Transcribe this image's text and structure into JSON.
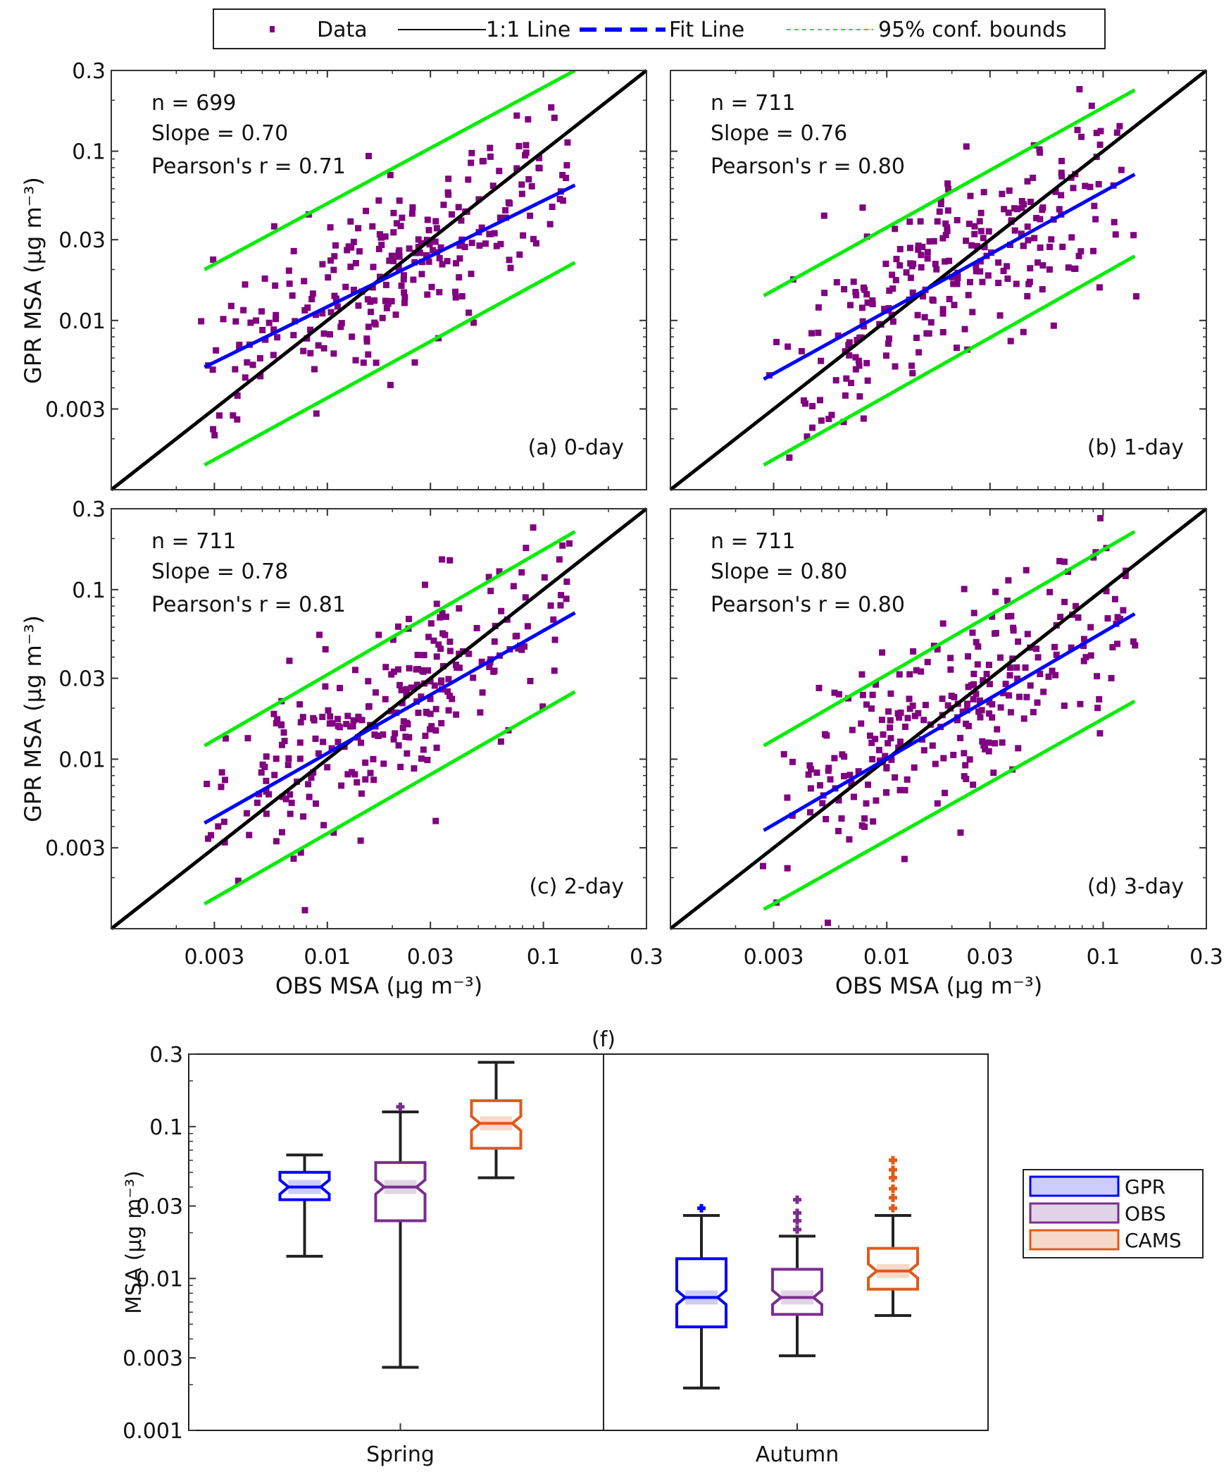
{
  "legend_top": {
    "entries": [
      {
        "label": "Data",
        "kind": "marker",
        "color": "#800080"
      },
      {
        "label": "1:1 Line",
        "kind": "solid",
        "color": "#000000"
      },
      {
        "label": "Fit Line",
        "kind": "dashed",
        "color": "#0000ff"
      },
      {
        "label": "95% conf. bounds",
        "kind": "dotted",
        "color": "#00ee00"
      }
    ]
  },
  "chart_data": [
    {
      "type": "scatter",
      "panel": "(a) 0-day",
      "xlabel": "",
      "ylabel": "GPR MSA (μg m⁻³)",
      "xscale": "log",
      "yscale": "log",
      "xlim": [
        0.001,
        0.3
      ],
      "ylim": [
        0.001,
        0.3
      ],
      "yticks": [
        "0.003",
        "0.01",
        "0.03",
        "0.1",
        "0.3"
      ],
      "xticks": [],
      "stats": [
        "n = 699",
        "Slope = 0.70",
        "Pearson's r = 0.71"
      ],
      "fit": {
        "x": [
          0.0027,
          0.14
        ],
        "y": [
          0.0053,
          0.063
        ]
      },
      "upper_bound": {
        "x": [
          0.0027,
          0.14
        ],
        "y": [
          0.02,
          0.3
        ]
      },
      "lower_bound": {
        "x": [
          0.0027,
          0.14
        ],
        "y": [
          0.0014,
          0.022
        ]
      },
      "cloud": {
        "center_x": 0.02,
        "center_y": 0.02,
        "spread": 0.55,
        "n": 260,
        "seed": 11
      }
    },
    {
      "type": "scatter",
      "panel": "(b) 1-day",
      "xlabel": "",
      "ylabel": "",
      "xscale": "log",
      "yscale": "log",
      "xlim": [
        0.001,
        0.3
      ],
      "ylim": [
        0.001,
        0.3
      ],
      "yticks": [],
      "xticks": [],
      "stats": [
        "n = 711",
        "Slope = 0.76",
        "Pearson's r = 0.80"
      ],
      "fit": {
        "x": [
          0.0027,
          0.14
        ],
        "y": [
          0.0045,
          0.073
        ]
      },
      "upper_bound": {
        "x": [
          0.0027,
          0.14
        ],
        "y": [
          0.014,
          0.23
        ]
      },
      "lower_bound": {
        "x": [
          0.0027,
          0.14
        ],
        "y": [
          0.0014,
          0.024
        ]
      },
      "cloud": {
        "center_x": 0.02,
        "center_y": 0.02,
        "spread": 0.5,
        "n": 260,
        "seed": 23
      }
    },
    {
      "type": "scatter",
      "panel": "(c) 2-day",
      "xlabel": "OBS MSA (μg m⁻³)",
      "ylabel": "GPR MSA (μg m⁻³)",
      "xscale": "log",
      "yscale": "log",
      "xlim": [
        0.001,
        0.3
      ],
      "ylim": [
        0.001,
        0.3
      ],
      "yticks": [
        "0.003",
        "0.01",
        "0.03",
        "0.1",
        "0.3"
      ],
      "xticks": [
        "0.003",
        "0.01",
        "0.03",
        "0.1",
        "0.3"
      ],
      "stats": [
        "n = 711",
        "Slope = 0.78",
        "Pearson's r = 0.81"
      ],
      "fit": {
        "x": [
          0.0027,
          0.14
        ],
        "y": [
          0.0042,
          0.073
        ]
      },
      "upper_bound": {
        "x": [
          0.0027,
          0.14
        ],
        "y": [
          0.012,
          0.22
        ]
      },
      "lower_bound": {
        "x": [
          0.0027,
          0.14
        ],
        "y": [
          0.0014,
          0.025
        ]
      },
      "cloud": {
        "center_x": 0.02,
        "center_y": 0.02,
        "spread": 0.5,
        "n": 260,
        "seed": 37
      }
    },
    {
      "type": "scatter",
      "panel": "(d) 3-day",
      "xlabel": "OBS MSA (μg m⁻³)",
      "ylabel": "",
      "xscale": "log",
      "yscale": "log",
      "xlim": [
        0.001,
        0.3
      ],
      "ylim": [
        0.001,
        0.3
      ],
      "yticks": [],
      "xticks": [
        "0.003",
        "0.01",
        "0.03",
        "0.1",
        "0.3"
      ],
      "stats": [
        "n = 711",
        "Slope = 0.80",
        "Pearson's r = 0.80"
      ],
      "fit": {
        "x": [
          0.0027,
          0.14
        ],
        "y": [
          0.0038,
          0.072
        ]
      },
      "upper_bound": {
        "x": [
          0.0027,
          0.14
        ],
        "y": [
          0.012,
          0.22
        ]
      },
      "lower_bound": {
        "x": [
          0.0027,
          0.14
        ],
        "y": [
          0.0013,
          0.022
        ]
      },
      "cloud": {
        "center_x": 0.02,
        "center_y": 0.02,
        "spread": 0.5,
        "n": 260,
        "seed": 51
      }
    },
    {
      "type": "box",
      "panel": "(f)",
      "title": "(f)",
      "ylabel": "MSA (μg m⁻³)",
      "yscale": "log",
      "ylim": [
        0.001,
        0.3
      ],
      "yticks": [
        "0.001",
        "0.003",
        "0.01",
        "0.03",
        "0.1",
        "0.3"
      ],
      "categories": [
        "Spring",
        "Autumn"
      ],
      "series": [
        {
          "name": "GPR",
          "color": "#0000ff",
          "fill": "#ccccff",
          "boxes": [
            {
              "whisker_low": 0.014,
              "q1": 0.033,
              "median": 0.04,
              "q3": 0.05,
              "whisker_high": 0.065,
              "outliers": []
            },
            {
              "whisker_low": 0.0019,
              "q1": 0.0048,
              "median": 0.0075,
              "q3": 0.0135,
              "whisker_high": 0.026,
              "outliers": [
                0.029
              ]
            }
          ]
        },
        {
          "name": "OBS",
          "color": "#7b2d8e",
          "fill": "#e1d4e6",
          "boxes": [
            {
              "whisker_low": 0.0026,
              "q1": 0.024,
              "median": 0.04,
              "q3": 0.058,
              "whisker_high": 0.125,
              "outliers": [
                0.135
              ]
            },
            {
              "whisker_low": 0.0031,
              "q1": 0.0058,
              "median": 0.0075,
              "q3": 0.0115,
              "whisker_high": 0.019,
              "outliers": [
                0.021,
                0.024,
                0.027,
                0.033
              ]
            }
          ]
        },
        {
          "name": "CAMS",
          "color": "#e05a1a",
          "fill": "#f6d9cb",
          "boxes": [
            {
              "whisker_low": 0.046,
              "q1": 0.072,
              "median": 0.105,
              "q3": 0.148,
              "whisker_high": 0.265,
              "outliers": []
            },
            {
              "whisker_low": 0.0057,
              "q1": 0.0085,
              "median": 0.0112,
              "q3": 0.0158,
              "whisker_high": 0.026,
              "outliers": [
                0.029,
                0.034,
                0.039,
                0.046,
                0.052,
                0.06
              ]
            }
          ]
        }
      ],
      "legend": [
        "GPR",
        "OBS",
        "CAMS"
      ],
      "legend_placement": "right"
    }
  ]
}
